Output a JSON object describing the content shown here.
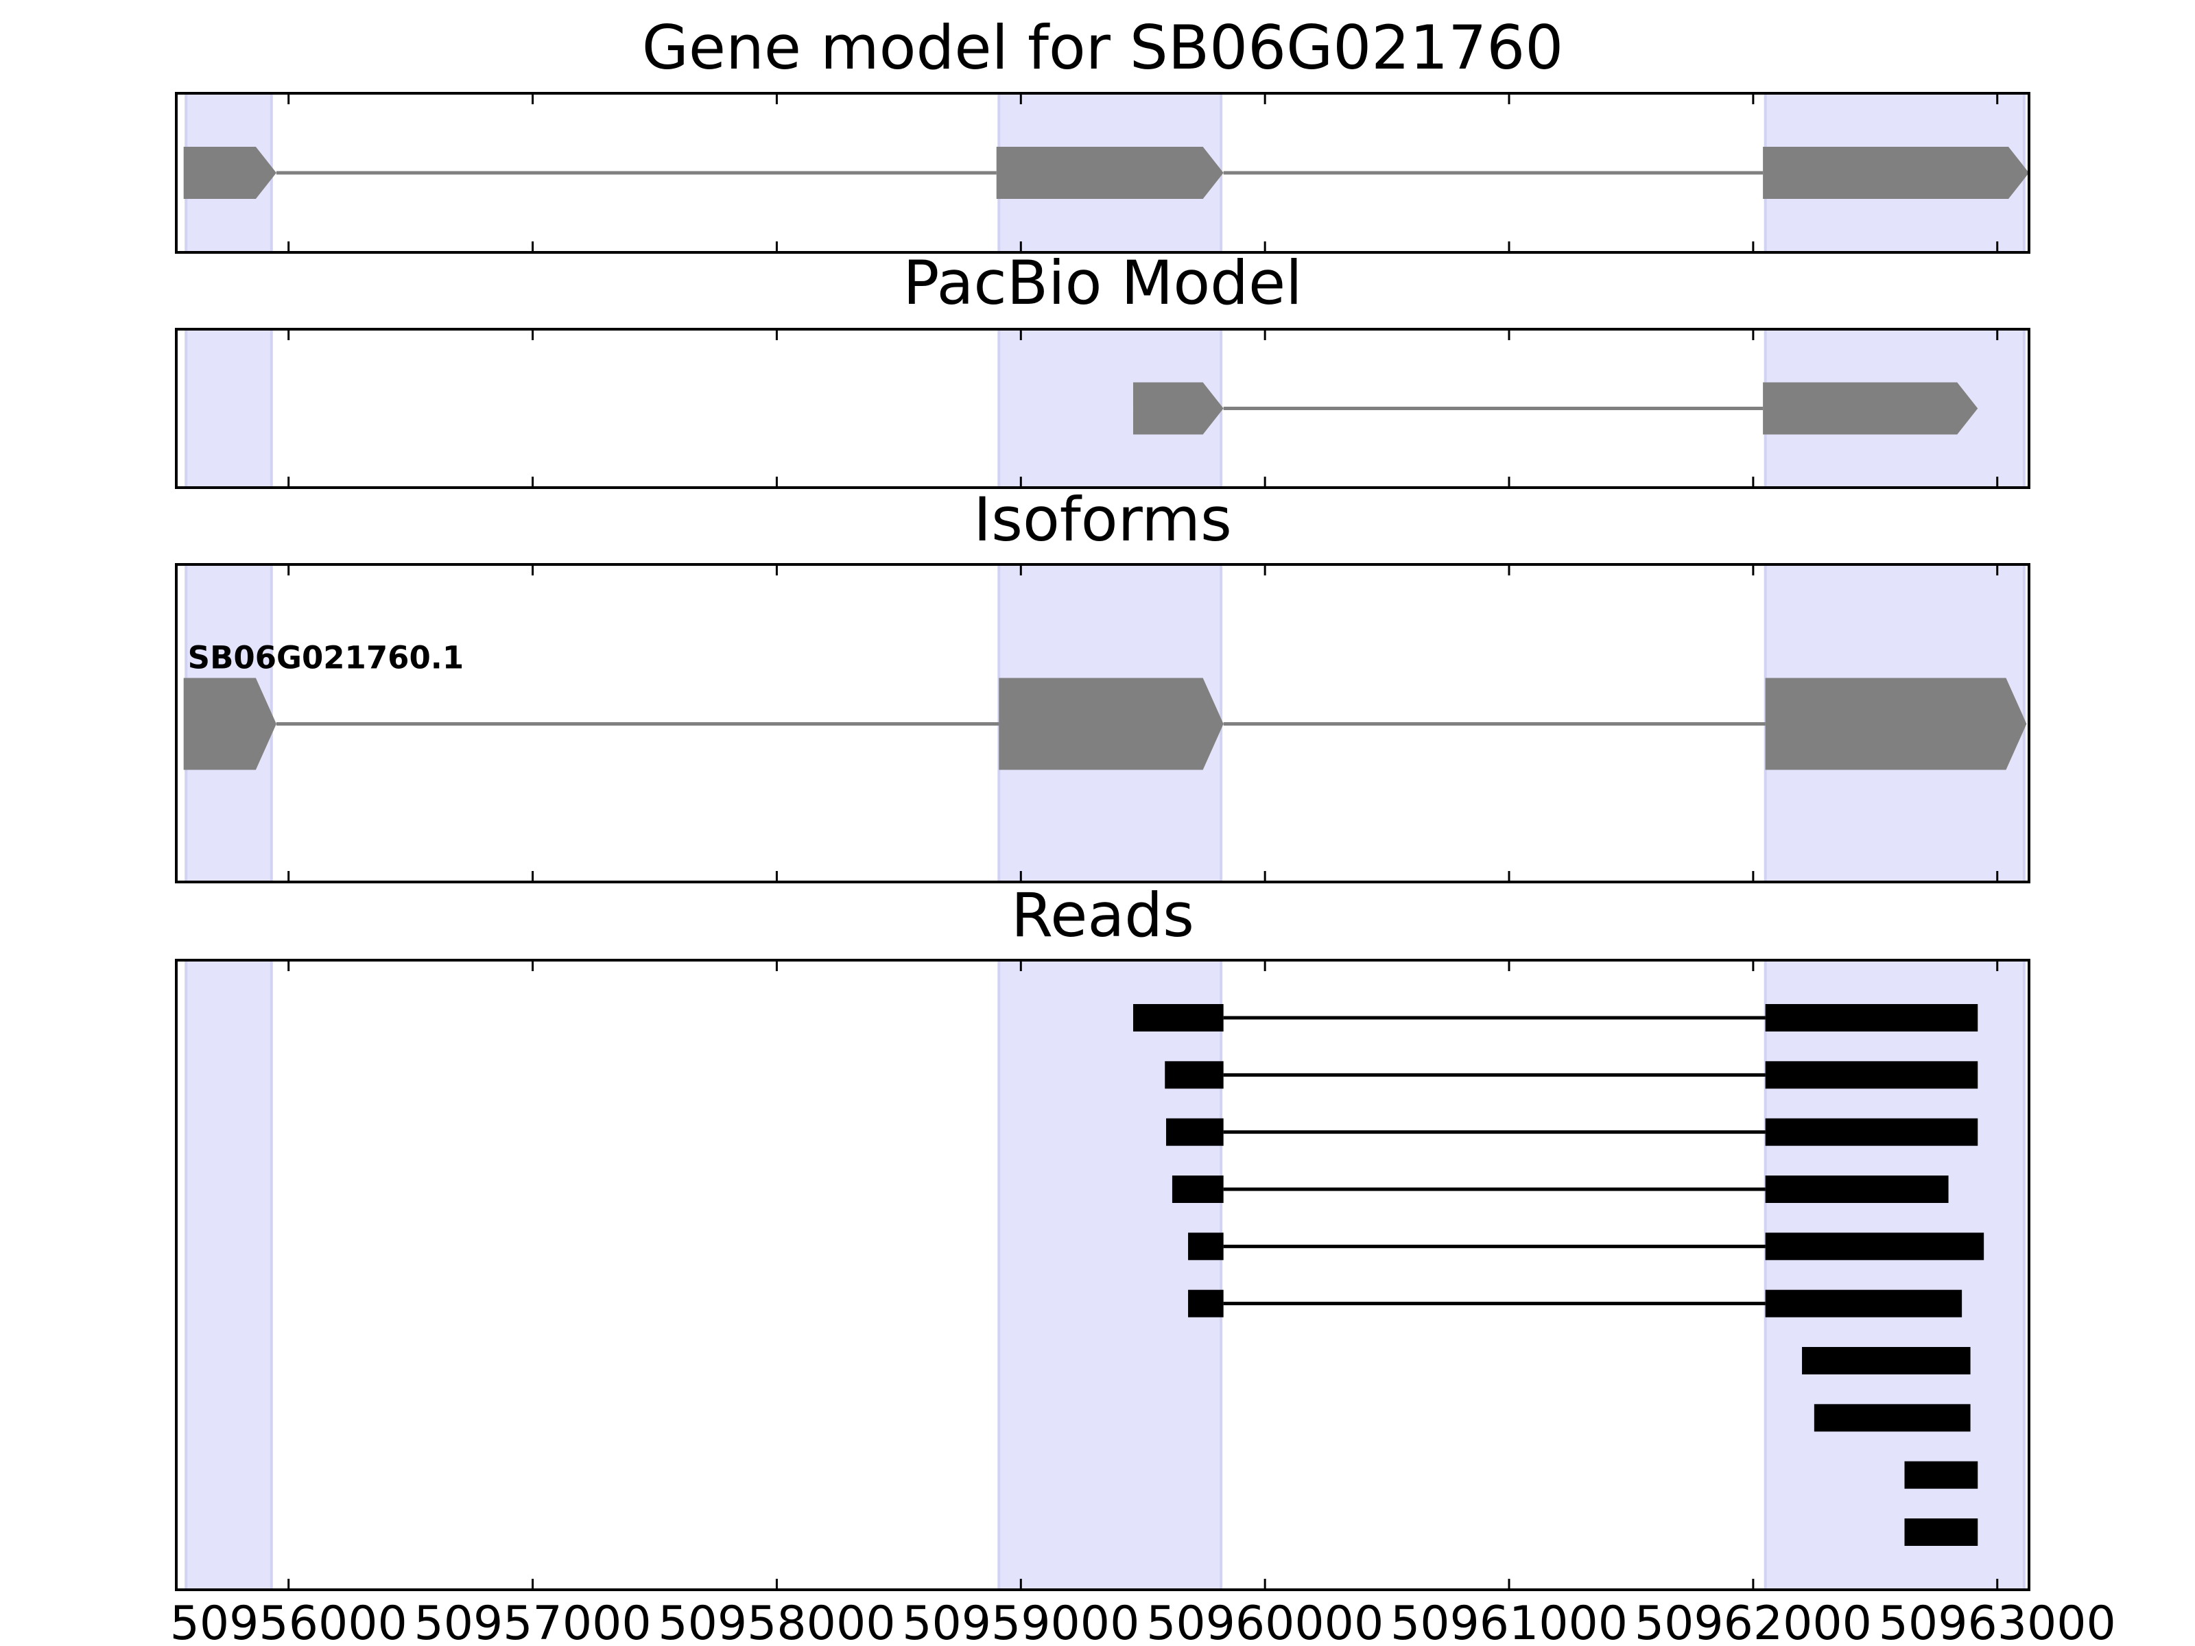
{
  "chart_data": {
    "type": "gene-structure",
    "xlim": [
      50955540,
      50963130
    ],
    "x_ticks": [
      50956000,
      50957000,
      50958000,
      50959000,
      50960000,
      50961000,
      50962000,
      50963000
    ],
    "x_tick_labels": [
      "50956000",
      "50957000",
      "50958000",
      "50959000",
      "50960000",
      "50961000",
      "50962000",
      "50963000"
    ],
    "exon_highlights": [
      [
        50955580,
        50955930
      ],
      [
        50958910,
        50959820
      ],
      [
        50962050,
        50963110
      ]
    ],
    "panels": [
      {
        "title": "Gene model for SB06G021760",
        "strand": "+",
        "models": [
          {
            "label": "",
            "exons": [
              [
                50955570,
                50955950
              ],
              [
                50958900,
                50959830
              ],
              [
                50962040,
                50963130
              ]
            ]
          }
        ]
      },
      {
        "title": "PacBio Model",
        "strand": "+",
        "models": [
          {
            "label": "",
            "exons": [
              [
                50959460,
                50959830
              ],
              [
                50962040,
                50962920
              ]
            ]
          }
        ]
      },
      {
        "title": "Isoforms",
        "strand": "+",
        "models": [
          {
            "label": "SB06G021760.1",
            "exons": [
              [
                50955570,
                50955950
              ],
              [
                50958910,
                50959830
              ],
              [
                50962050,
                50963120
              ]
            ]
          }
        ]
      },
      {
        "title": "Reads",
        "reads": [
          {
            "blocks": [
              [
                50959460,
                50959830
              ],
              [
                50962050,
                50962920
              ]
            ]
          },
          {
            "blocks": [
              [
                50959590,
                50959830
              ],
              [
                50962050,
                50962920
              ]
            ]
          },
          {
            "blocks": [
              [
                50959595,
                50959830
              ],
              [
                50962050,
                50962920
              ]
            ]
          },
          {
            "blocks": [
              [
                50959620,
                50959830
              ],
              [
                50962050,
                50962800
              ]
            ]
          },
          {
            "blocks": [
              [
                50959685,
                50959830
              ],
              [
                50962050,
                50962945
              ]
            ]
          },
          {
            "blocks": [
              [
                50959685,
                50959830
              ],
              [
                50962050,
                50962855
              ]
            ]
          },
          {
            "blocks": [
              [
                50962200,
                50962890
              ]
            ]
          },
          {
            "blocks": [
              [
                50962250,
                50962890
              ]
            ]
          },
          {
            "blocks": [
              [
                50962620,
                50962920
              ]
            ]
          },
          {
            "blocks": [
              [
                50962620,
                50962920
              ]
            ]
          }
        ]
      }
    ],
    "colors": {
      "highlight": "#e3e3fb",
      "highlight_edge": "#d2d2f2",
      "gene_model": "#808080",
      "read": "#000000",
      "axis": "#000000"
    }
  }
}
